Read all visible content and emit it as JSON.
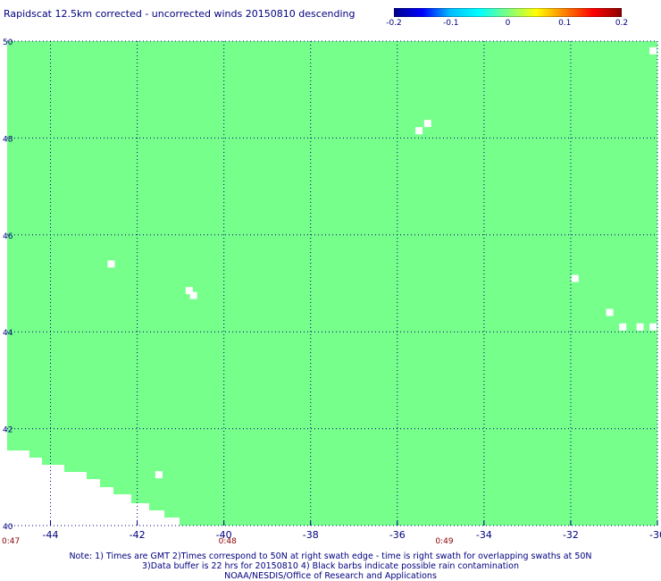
{
  "title": "Rapidscat 12.5km corrected - uncorrected winds 20150810 descending",
  "colorbar": {
    "ticks": [
      "-0.2",
      "-0.1",
      "0",
      "0.1",
      "0.2"
    ],
    "range": [
      -0.2,
      0.2
    ],
    "colors": [
      "#00008b",
      "#0000ff",
      "#00bfff",
      "#00ffff",
      "#7fff7f",
      "#ffff00",
      "#ff8000",
      "#ff0000",
      "#8b0000"
    ]
  },
  "map": {
    "fill_color": "#76ff8a",
    "grid_color": "#000080",
    "grid_style": "dotted",
    "lon_range": [
      -45,
      -30
    ],
    "lat_range": [
      40,
      50
    ],
    "lon_ticks": [
      "-44",
      "-42",
      "-40",
      "-38",
      "-36",
      "-34",
      "-32",
      "-30"
    ],
    "lat_ticks": [
      "50",
      "48",
      "46",
      "44",
      "42",
      "40"
    ],
    "time_labels": [
      "0:47",
      "0:48",
      "0:49"
    ],
    "time_label_color": "#8b0000",
    "missing_cells": [
      {
        "lon": -42.6,
        "lat": 45.4
      },
      {
        "lon": -40.8,
        "lat": 44.85
      },
      {
        "lon": -40.7,
        "lat": 44.75
      },
      {
        "lon": -35.5,
        "lat": 48.15
      },
      {
        "lon": -35.3,
        "lat": 48.3
      },
      {
        "lon": -31.9,
        "lat": 45.1
      },
      {
        "lon": -31.1,
        "lat": 44.4
      },
      {
        "lon": -41.5,
        "lat": 41.05
      },
      {
        "lon": -30.8,
        "lat": 44.1
      },
      {
        "lon": -30.4,
        "lat": 44.1
      },
      {
        "lon": -30.1,
        "lat": 44.1
      },
      {
        "lon": -30.1,
        "lat": 49.8
      }
    ]
  },
  "notes": [
    "Note: 1) Times are GMT 2)Times correspond to 50N at right swath edge - time is right swath for overlapping swaths at 50N",
    "3)Data buffer is 22 hrs for 20150810 4) Black barbs indicate possible rain contamination",
    "NOAA/NESDIS/Office of Research and Applications"
  ]
}
